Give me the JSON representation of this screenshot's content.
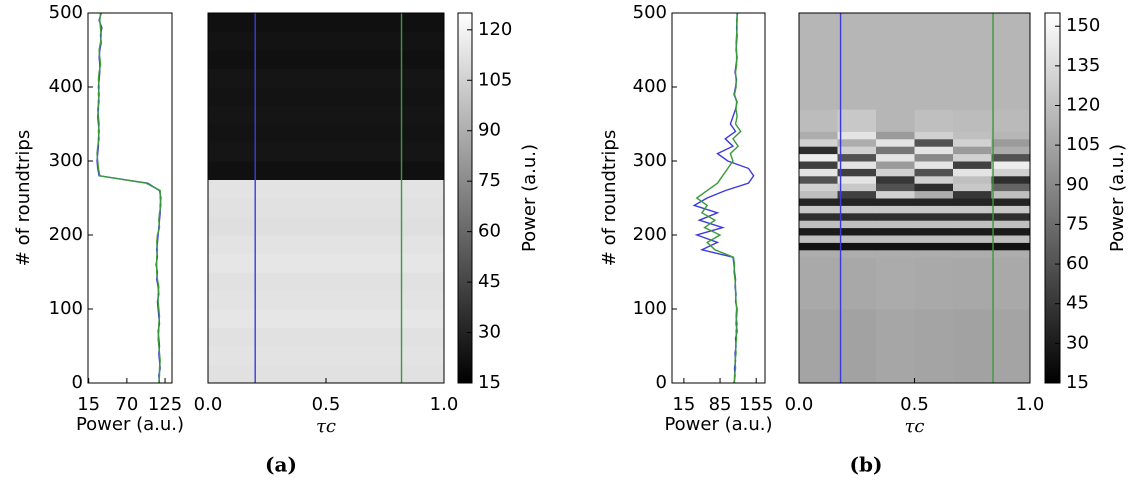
{
  "panels": [
    "(a)",
    "(b)"
  ],
  "chart_data": [
    {
      "type": "line",
      "xlabel": "Power (a.u.)",
      "ylabel": "# of roundtrips",
      "y": [
        0,
        10,
        20,
        30,
        40,
        50,
        60,
        70,
        80,
        90,
        100,
        110,
        120,
        130,
        140,
        150,
        160,
        170,
        180,
        190,
        200,
        210,
        220,
        230,
        240,
        250,
        260,
        270,
        280,
        290,
        300,
        310,
        320,
        330,
        340,
        350,
        360,
        370,
        380,
        390,
        400,
        410,
        420,
        430,
        440,
        450,
        460,
        470,
        480,
        490,
        500
      ],
      "series": [
        {
          "color": "#3b3bdc",
          "values": [
            117,
            116,
            118,
            117,
            116,
            117,
            116,
            115,
            117,
            116,
            115,
            114,
            116,
            115,
            113,
            114,
            112,
            114,
            113,
            114,
            115,
            116,
            117,
            118,
            118,
            119,
            117,
            100,
            30,
            28,
            27,
            28,
            29,
            29,
            30,
            29,
            28,
            29,
            29,
            30,
            29,
            30,
            31,
            31,
            30,
            31,
            33,
            32,
            34,
            30,
            33
          ]
        },
        {
          "color": "#3a9a3a",
          "values": [
            116,
            117,
            117,
            118,
            117,
            116,
            115,
            116,
            116,
            117,
            116,
            115,
            115,
            116,
            114,
            113,
            113,
            113,
            114,
            113,
            114,
            117,
            116,
            117,
            119,
            118,
            118,
            98,
            31,
            29,
            28,
            27,
            28,
            30,
            29,
            30,
            29,
            28,
            30,
            29,
            30,
            29,
            30,
            32,
            31,
            30,
            32,
            33,
            32,
            31,
            32
          ]
        }
      ],
      "xlim": [
        14,
        135
      ],
      "xticks": [
        15,
        70,
        125
      ],
      "ylim": [
        0,
        500
      ],
      "yticks": [
        0,
        100,
        200,
        300,
        400,
        500
      ]
    },
    {
      "type": "heatmap",
      "xlabel": "τc",
      "xlim": [
        0,
        1
      ],
      "xticks": [
        {
          "value": 0,
          "label": "0.0"
        },
        {
          "value": 0.5,
          "label": "0.5"
        },
        {
          "value": 1,
          "label": "1.0"
        }
      ],
      "ylim": [
        0,
        500
      ],
      "rows": [
        0,
        25,
        50,
        75,
        100,
        125,
        150,
        175,
        200,
        225,
        250,
        275,
        300,
        325,
        350,
        375,
        400,
        425,
        450,
        475,
        500
      ],
      "values": [
        [
          112
        ],
        [
          113
        ],
        [
          112
        ],
        [
          114
        ],
        [
          113
        ],
        [
          112
        ],
        [
          114
        ],
        [
          113
        ],
        [
          111
        ],
        [
          112
        ],
        [
          113
        ],
        [
          22
        ],
        [
          24
        ],
        [
          23
        ],
        [
          24
        ],
        [
          23
        ],
        [
          24
        ],
        [
          22
        ],
        [
          23
        ],
        [
          22
        ]
      ],
      "vlines": [
        {
          "x": 0.2,
          "color": "#3b3bdc"
        },
        {
          "x": 0.82,
          "color": "#3a9a3a"
        }
      ]
    },
    {
      "type": "colorbar",
      "label": "Power (a.u.)",
      "ylim": [
        15,
        125
      ],
      "yticks": [
        15,
        30,
        45,
        60,
        75,
        90,
        105,
        120
      ]
    },
    {
      "type": "line",
      "xlabel": "Power (a.u.)",
      "ylabel": "# of roundtrips",
      "y": [
        0,
        10,
        20,
        30,
        40,
        50,
        60,
        70,
        80,
        90,
        100,
        110,
        120,
        130,
        140,
        150,
        160,
        170,
        180,
        190,
        200,
        210,
        220,
        230,
        240,
        250,
        260,
        270,
        280,
        290,
        300,
        310,
        320,
        330,
        340,
        350,
        360,
        370,
        380,
        390,
        400,
        410,
        420,
        430,
        440,
        450,
        460,
        470,
        480,
        490,
        500
      ],
      "series": [
        {
          "color": "#3b3bdc",
          "values": [
            112,
            114,
            113,
            115,
            114,
            116,
            115,
            118,
            116,
            117,
            118,
            115,
            116,
            114,
            115,
            113,
            112,
            110,
            50,
            80,
            40,
            90,
            45,
            80,
            35,
            60,
            95,
            140,
            150,
            140,
            100,
            80,
            110,
            95,
            115,
            105,
            110,
            115,
            118,
            112,
            115,
            117,
            114,
            116,
            118,
            116,
            117,
            118,
            117,
            118,
            118
          ]
        },
        {
          "color": "#3a9a3a",
          "values": [
            113,
            113,
            115,
            114,
            116,
            115,
            117,
            116,
            118,
            116,
            117,
            116,
            115,
            115,
            114,
            112,
            113,
            111,
            75,
            60,
            85,
            55,
            75,
            50,
            60,
            40,
            60,
            80,
            90,
            100,
            110,
            105,
            120,
            110,
            125,
            115,
            118,
            116,
            117,
            113,
            116,
            116,
            115,
            117,
            117,
            117,
            116,
            117,
            118,
            117,
            119
          ]
        }
      ],
      "xlim": [
        -8,
        172
      ],
      "xticks": [
        15,
        85,
        155
      ],
      "ylim": [
        0,
        500
      ],
      "yticks": [
        0,
        100,
        200,
        300,
        400,
        500
      ]
    },
    {
      "type": "heatmap",
      "xlabel": "τc",
      "xlim": [
        0,
        1
      ],
      "xticks": [
        {
          "value": 0,
          "label": "0.0"
        },
        {
          "value": 0.5,
          "label": "0.5"
        },
        {
          "value": 1,
          "label": "1.0"
        }
      ],
      "ylim": [
        0,
        500
      ],
      "rows": [
        0,
        100,
        170,
        180,
        190,
        200,
        210,
        220,
        230,
        240,
        250,
        260,
        270,
        280,
        290,
        300,
        310,
        320,
        330,
        340,
        370,
        500
      ],
      "values": [
        [
          105,
          104,
          106,
          105,
          104,
          105
        ],
        [
          108,
          107,
          109,
          108,
          107,
          108
        ],
        [
          110,
          110,
          110,
          110,
          110,
          110
        ],
        [
          25,
          25,
          25,
          25,
          25,
          25
        ],
        [
          120,
          120,
          120,
          120,
          120,
          120
        ],
        [
          30,
          30,
          30,
          30,
          30,
          30
        ],
        [
          120,
          120,
          120,
          120,
          120,
          120
        ],
        [
          40,
          40,
          40,
          40,
          40,
          40
        ],
        [
          125,
          125,
          125,
          125,
          125,
          125
        ],
        [
          35,
          35,
          35,
          35,
          35,
          35
        ],
        [
          120,
          50,
          130,
          110,
          45,
          120
        ],
        [
          130,
          125,
          60,
          40,
          125,
          70
        ],
        [
          60,
          140,
          45,
          130,
          120,
          40
        ],
        [
          140,
          50,
          130,
          60,
          140,
          130
        ],
        [
          50,
          140,
          100,
          140,
          50,
          145
        ],
        [
          145,
          60,
          140,
          90,
          130,
          60
        ],
        [
          40,
          130,
          80,
          140,
          100,
          110
        ],
        [
          130,
          110,
          140,
          60,
          130,
          100
        ],
        [
          110,
          140,
          100,
          130,
          120,
          115
        ],
        [
          118,
          125,
          115,
          120,
          118,
          117
        ],
        [
          115,
          115,
          115,
          115,
          115,
          115
        ]
      ],
      "vlines": [
        {
          "x": 0.18,
          "color": "#3b3bdc"
        },
        {
          "x": 0.84,
          "color": "#3a9a3a"
        }
      ]
    },
    {
      "type": "colorbar",
      "label": "Power (a.u.)",
      "ylim": [
        15,
        155
      ],
      "yticks": [
        15,
        30,
        45,
        60,
        75,
        90,
        105,
        120,
        135,
        150
      ]
    }
  ]
}
